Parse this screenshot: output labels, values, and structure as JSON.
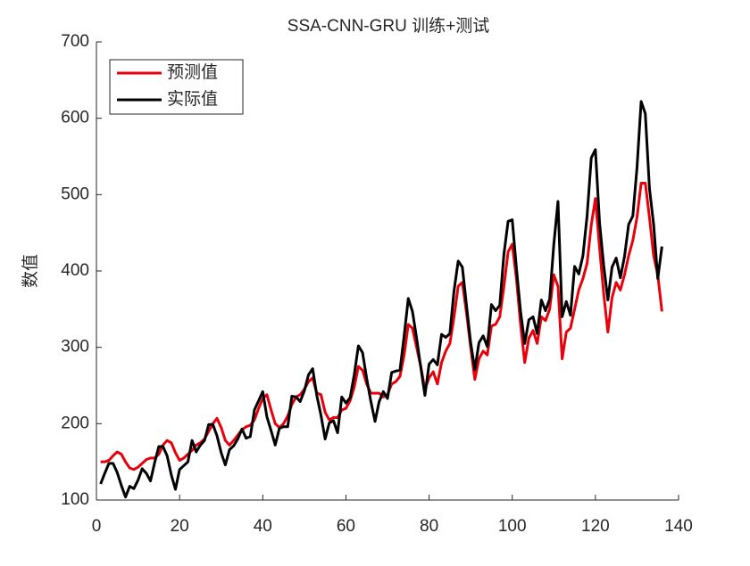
{
  "chart_data": {
    "type": "line",
    "title": "SSA-CNN-GRU 训练+测试",
    "ylabel": "数值",
    "x": [
      1,
      2,
      3,
      4,
      5,
      6,
      7,
      8,
      9,
      10,
      11,
      12,
      13,
      14,
      15,
      16,
      17,
      18,
      19,
      20,
      21,
      22,
      23,
      24,
      25,
      26,
      27,
      28,
      29,
      30,
      31,
      32,
      33,
      34,
      35,
      36,
      37,
      38,
      39,
      40,
      41,
      42,
      43,
      44,
      45,
      46,
      47,
      48,
      49,
      50,
      51,
      52,
      53,
      54,
      55,
      56,
      57,
      58,
      59,
      60,
      61,
      62,
      63,
      64,
      65,
      66,
      67,
      68,
      69,
      70,
      71,
      72,
      73,
      74,
      75,
      76,
      77,
      78,
      79,
      80,
      81,
      82,
      83,
      84,
      85,
      86,
      87,
      88,
      89,
      90,
      91,
      92,
      93,
      94,
      95,
      96,
      97,
      98,
      99,
      100,
      101,
      102,
      103,
      104,
      105,
      106,
      107,
      108,
      109,
      110,
      111,
      112,
      113,
      114,
      115,
      116,
      117,
      118,
      119,
      120,
      121,
      122,
      123,
      124,
      125,
      126,
      127,
      128,
      129,
      130,
      131,
      132,
      133,
      134,
      135,
      136
    ],
    "series": [
      {
        "name": "预测值",
        "color": "#e8000b",
        "values": [
          150,
          150,
          152,
          158,
          163,
          160,
          150,
          142,
          140,
          143,
          148,
          153,
          155,
          155,
          160,
          172,
          178,
          175,
          162,
          152,
          155,
          160,
          165,
          172,
          175,
          180,
          190,
          200,
          207,
          195,
          178,
          172,
          178,
          185,
          192,
          196,
          198,
          205,
          220,
          233,
          238,
          218,
          200,
          195,
          200,
          210,
          225,
          235,
          238,
          245,
          255,
          260,
          240,
          238,
          215,
          205,
          208,
          208,
          218,
          220,
          230,
          248,
          275,
          270,
          252,
          240,
          240,
          240,
          235,
          238,
          252,
          255,
          262,
          290,
          330,
          325,
          300,
          275,
          245,
          260,
          268,
          252,
          280,
          295,
          305,
          340,
          380,
          385,
          345,
          300,
          258,
          285,
          295,
          290,
          328,
          330,
          340,
          380,
          425,
          435,
          390,
          330,
          280,
          312,
          322,
          305,
          340,
          335,
          350,
          395,
          380,
          285,
          320,
          325,
          350,
          375,
          390,
          410,
          460,
          495,
          430,
          370,
          320,
          365,
          385,
          375,
          395,
          420,
          440,
          470,
          515,
          515,
          470,
          420,
          395,
          347
        ]
      },
      {
        "name": "实际值",
        "color": "#000000",
        "values": [
          121,
          135,
          148,
          148,
          136,
          119,
          104,
          118,
          115,
          126,
          141,
          135,
          125,
          149,
          170,
          170,
          158,
          133,
          114,
          140,
          145,
          150,
          178,
          163,
          172,
          178,
          199,
          199,
          184,
          162,
          146,
          166,
          171,
          180,
          193,
          181,
          183,
          218,
          230,
          242,
          209,
          191,
          172,
          194,
          196,
          196,
          236,
          235,
          229,
          243,
          264,
          272,
          237,
          211,
          180,
          201,
          204,
          188,
          235,
          227,
          234,
          264,
          302,
          293,
          259,
          229,
          203,
          229,
          242,
          233,
          267,
          269,
          270,
          315,
          364,
          347,
          312,
          274,
          237,
          278,
          284,
          277,
          317,
          313,
          318,
          374,
          413,
          405,
          355,
          306,
          271,
          306,
          315,
          301,
          356,
          348,
          355,
          422,
          465,
          467,
          404,
          347,
          305,
          336,
          340,
          318,
          362,
          348,
          363,
          435,
          491,
          340,
          360,
          342,
          406,
          396,
          420,
          472,
          548,
          559,
          463,
          407,
          362,
          405,
          417,
          391,
          419,
          461,
          472,
          535,
          622,
          606,
          508,
          461,
          390,
          432
        ]
      }
    ],
    "xlim": [
      0,
      140
    ],
    "xticks": [
      0,
      20,
      40,
      60,
      80,
      100,
      120,
      140
    ],
    "ylim": [
      100,
      700
    ],
    "yticks": [
      100,
      200,
      300,
      400,
      500,
      600,
      700
    ],
    "legend": "upper left"
  }
}
